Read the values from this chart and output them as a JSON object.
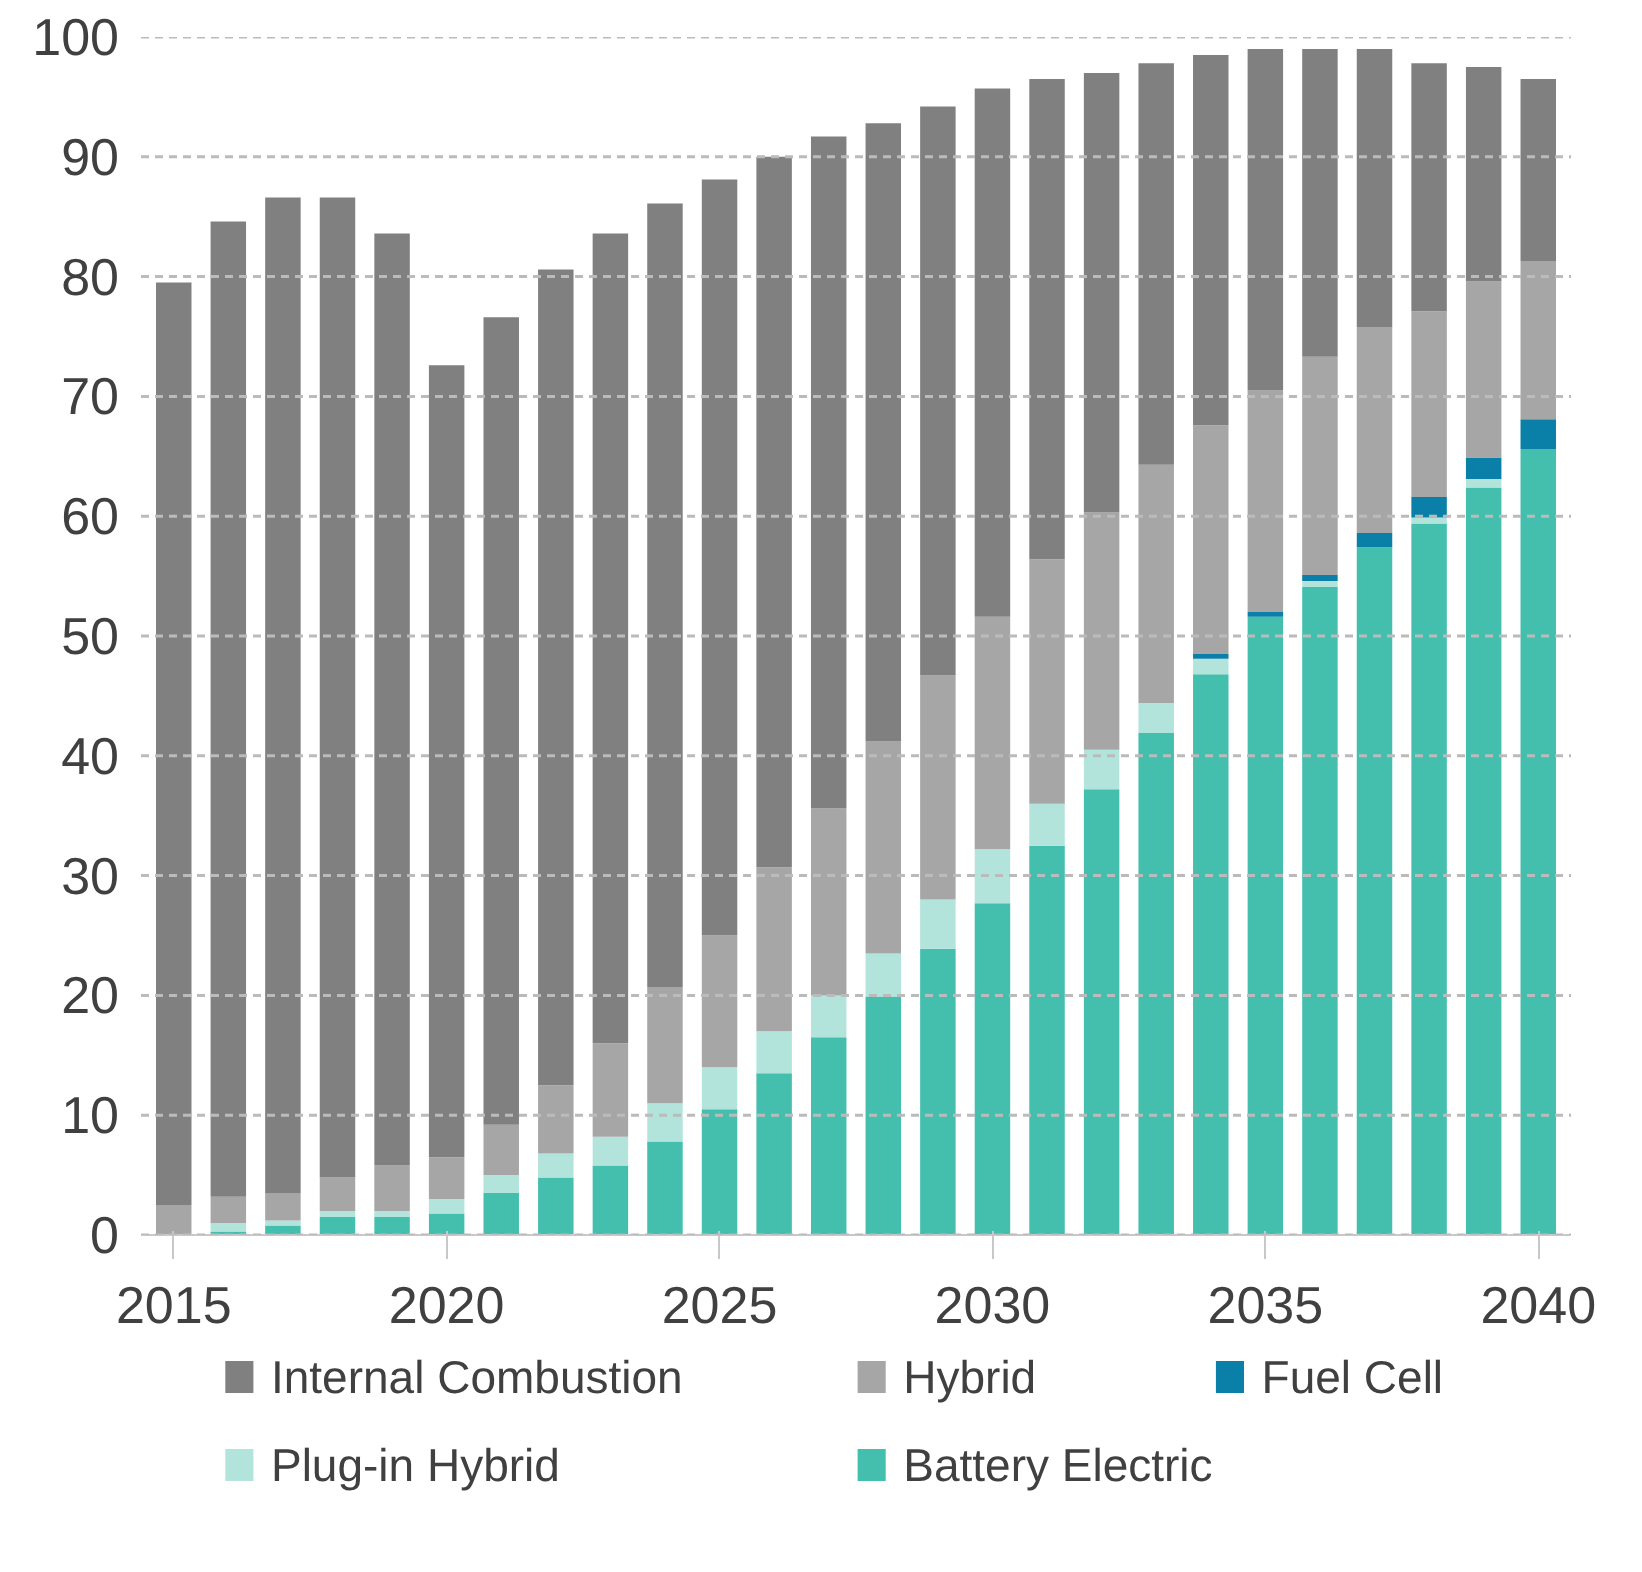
{
  "chart_data": {
    "type": "bar",
    "stacked": true,
    "x": [
      2015,
      2016,
      2017,
      2018,
      2019,
      2020,
      2021,
      2022,
      2023,
      2024,
      2025,
      2026,
      2027,
      2028,
      2029,
      2030,
      2031,
      2032,
      2033,
      2034,
      2035,
      2036,
      2037,
      2038,
      2039,
      2040
    ],
    "series": [
      {
        "name": "Battery Electric",
        "color": "#44bfae",
        "values": [
          0,
          0.3,
          0.8,
          1.5,
          1.5,
          1.8,
          3.5,
          4.8,
          5.8,
          7.8,
          10.5,
          13.5,
          16.5,
          19.9,
          23.9,
          27.7,
          32.5,
          37.2,
          41.9,
          46.8,
          51.6,
          54.1,
          57.4,
          59.4,
          62.4,
          65.6
        ]
      },
      {
        "name": "Plug-in Hybrid",
        "color": "#b2e4dc",
        "values": [
          null,
          0.7,
          0.4,
          0.5,
          0.5,
          1.2,
          1.5,
          2.0,
          2.4,
          3.2,
          3.5,
          3.5,
          3.5,
          3.6,
          4.1,
          4.5,
          3.5,
          3.3,
          2.5,
          1.3,
          null,
          0.5,
          null,
          0.5,
          0.7,
          null
        ]
      },
      {
        "name": "Fuel Cell",
        "color": "#0a80a8",
        "values": [
          0,
          0,
          0,
          0,
          0,
          0,
          0,
          0,
          0,
          0,
          0,
          0,
          0,
          0,
          0,
          0,
          0,
          0,
          0,
          0.4,
          0.4,
          0.5,
          1.2,
          1.7,
          1.8,
          2.5
        ]
      },
      {
        "name": "Hybrid",
        "color": "#a6a6a6",
        "values": [
          2.5,
          2.2,
          2.3,
          2.8,
          3.8,
          3.5,
          4.2,
          5.7,
          7.8,
          9.7,
          11.0,
          13.7,
          15.6,
          17.7,
          18.7,
          19.4,
          20.4,
          19.8,
          19.9,
          19.1,
          18.5,
          18.2,
          17.2,
          15.5,
          14.7,
          13.2
        ]
      },
      {
        "name": "Internal Combustion",
        "color": "#808080",
        "values": [
          77.0,
          81.4,
          83.1,
          81.8,
          77.8,
          66.1,
          67.4,
          68.1,
          67.6,
          65.4,
          63.1,
          59.3,
          56.1,
          51.6,
          47.5,
          44.1,
          40.1,
          36.7,
          33.5,
          30.9,
          28.5,
          25.7,
          23.2,
          20.7,
          17.9,
          15.2
        ]
      }
    ],
    "xlim": [
      2014.4,
      2040.6
    ],
    "xticks": [
      2015,
      2020,
      2025,
      2030,
      2035,
      2040
    ],
    "ylim": [
      0,
      100
    ],
    "yticks": [
      0,
      10,
      20,
      30,
      40,
      50,
      60,
      70,
      80,
      90,
      100
    ],
    "grid": "y",
    "legend": "bottom"
  }
}
